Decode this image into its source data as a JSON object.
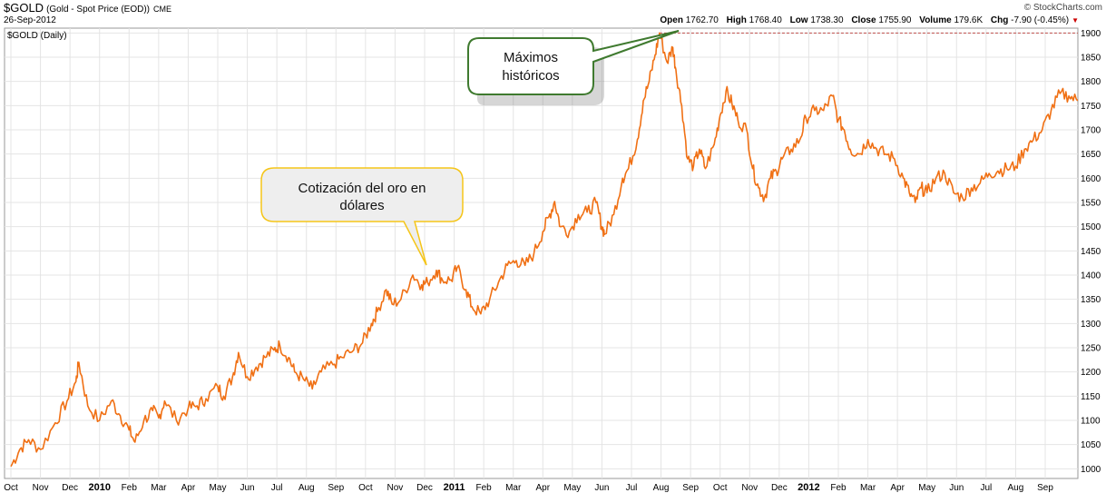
{
  "header": {
    "symbol": "$GOLD",
    "description": "(Gold - Spot Price (EOD))",
    "exchange": "CME",
    "date": "26-Sep-2012",
    "brand": "© StockCharts.com",
    "panel_label": "$GOLD (Daily)",
    "ohlc": {
      "open_label": "Open",
      "open": "1762.70",
      "high_label": "High",
      "high": "1768.40",
      "low_label": "Low",
      "low": "1738.30",
      "close_label": "Close",
      "close": "1755.90",
      "volume_label": "Volume",
      "volume": "179.6K",
      "chg_label": "Chg",
      "chg": "-7.90 (-0.45%)"
    }
  },
  "annotations": {
    "gold_price": [
      "Cotización del oro en",
      "dólares"
    ],
    "highs": [
      "Máximos",
      "históricos"
    ]
  },
  "colors": {
    "line": "#f07014",
    "grid": "#e4e4e4",
    "high_line": "#c0504d",
    "callout_gold_border": "#f5c518",
    "callout_green_border": "#3f7a2f"
  },
  "chart_data": {
    "type": "line",
    "title": "$GOLD (Daily)",
    "ylim": [
      980,
      1910
    ],
    "y_ticks": [
      1000,
      1050,
      1100,
      1150,
      1200,
      1250,
      1300,
      1350,
      1400,
      1450,
      1500,
      1550,
      1600,
      1650,
      1700,
      1750,
      1800,
      1850,
      1900
    ],
    "x_tick_labels": [
      "Oct",
      "Nov",
      "Dec",
      "2010",
      "Feb",
      "Mar",
      "Apr",
      "May",
      "Jun",
      "Jul",
      "Aug",
      "Sep",
      "Oct",
      "Nov",
      "Dec",
      "2011",
      "Feb",
      "Mar",
      "Apr",
      "May",
      "Jun",
      "Jul",
      "Aug",
      "Sep",
      "Oct",
      "Nov",
      "Dec",
      "2012",
      "Feb",
      "Mar",
      "Apr",
      "May",
      "Jun",
      "Jul",
      "Aug",
      "Sep"
    ],
    "x_tick_bold": [
      "2010",
      "2011",
      "2012"
    ],
    "all_time_high_ref": 1900,
    "series": [
      {
        "values": [
          [
            0,
            1005
          ],
          [
            0.3,
            1040
          ],
          [
            0.6,
            1060
          ],
          [
            1.0,
            1040
          ],
          [
            1.5,
            1095
          ],
          [
            1.9,
            1140
          ],
          [
            2.2,
            1180
          ],
          [
            2.3,
            1220
          ],
          [
            2.6,
            1130
          ],
          [
            3.0,
            1100
          ],
          [
            3.4,
            1140
          ],
          [
            3.7,
            1110
          ],
          [
            4.0,
            1080
          ],
          [
            4.2,
            1055
          ],
          [
            4.5,
            1100
          ],
          [
            4.8,
            1120
          ],
          [
            5.0,
            1105
          ],
          [
            5.2,
            1140
          ],
          [
            5.6,
            1100
          ],
          [
            6.0,
            1125
          ],
          [
            6.3,
            1130
          ],
          [
            6.6,
            1145
          ],
          [
            7.0,
            1170
          ],
          [
            7.2,
            1150
          ],
          [
            7.5,
            1190
          ],
          [
            7.7,
            1240
          ],
          [
            8.0,
            1190
          ],
          [
            8.3,
            1210
          ],
          [
            8.6,
            1230
          ],
          [
            8.9,
            1245
          ],
          [
            9.1,
            1255
          ],
          [
            9.4,
            1230
          ],
          [
            9.6,
            1200
          ],
          [
            9.9,
            1185
          ],
          [
            10.2,
            1165
          ],
          [
            10.5,
            1200
          ],
          [
            10.9,
            1215
          ],
          [
            11.2,
            1230
          ],
          [
            11.6,
            1245
          ],
          [
            11.9,
            1260
          ],
          [
            12.2,
            1300
          ],
          [
            12.4,
            1325
          ],
          [
            12.7,
            1370
          ],
          [
            12.9,
            1340
          ],
          [
            13.2,
            1350
          ],
          [
            13.6,
            1400
          ],
          [
            13.9,
            1380
          ],
          [
            14.1,
            1385
          ],
          [
            14.4,
            1410
          ],
          [
            14.6,
            1390
          ],
          [
            14.9,
            1390
          ],
          [
            15.1,
            1415
          ],
          [
            15.4,
            1370
          ],
          [
            15.6,
            1335
          ],
          [
            15.9,
            1320
          ],
          [
            16.2,
            1350
          ],
          [
            16.5,
            1385
          ],
          [
            16.8,
            1420
          ],
          [
            17.1,
            1430
          ],
          [
            17.4,
            1420
          ],
          [
            17.7,
            1445
          ],
          [
            18.0,
            1490
          ],
          [
            18.2,
            1520
          ],
          [
            18.4,
            1552
          ],
          [
            18.6,
            1500
          ],
          [
            18.9,
            1490
          ],
          [
            19.2,
            1525
          ],
          [
            19.5,
            1530
          ],
          [
            19.8,
            1550
          ],
          [
            20.0,
            1500
          ],
          [
            20.1,
            1485
          ],
          [
            20.4,
            1525
          ],
          [
            20.7,
            1600
          ],
          [
            20.9,
            1620
          ],
          [
            21.2,
            1680
          ],
          [
            21.4,
            1760
          ],
          [
            21.6,
            1800
          ],
          [
            21.8,
            1855
          ],
          [
            21.95,
            1900
          ],
          [
            22.2,
            1840
          ],
          [
            22.4,
            1870
          ],
          [
            22.5,
            1825
          ],
          [
            22.7,
            1750
          ],
          [
            22.9,
            1640
          ],
          [
            23.1,
            1625
          ],
          [
            23.3,
            1660
          ],
          [
            23.5,
            1620
          ],
          [
            23.8,
            1670
          ],
          [
            24.0,
            1730
          ],
          [
            24.2,
            1780
          ],
          [
            24.4,
            1755
          ],
          [
            24.6,
            1720
          ],
          [
            24.9,
            1700
          ],
          [
            25.1,
            1620
          ],
          [
            25.3,
            1580
          ],
          [
            25.5,
            1560
          ],
          [
            25.7,
            1600
          ],
          [
            25.9,
            1615
          ],
          [
            26.1,
            1640
          ],
          [
            26.4,
            1660
          ],
          [
            26.7,
            1680
          ],
          [
            26.9,
            1725
          ],
          [
            27.2,
            1740
          ],
          [
            27.5,
            1740
          ],
          [
            27.8,
            1770
          ],
          [
            28.0,
            1720
          ],
          [
            28.2,
            1700
          ],
          [
            28.4,
            1660
          ],
          [
            28.7,
            1650
          ],
          [
            29.0,
            1680
          ],
          [
            29.3,
            1660
          ],
          [
            29.6,
            1650
          ],
          [
            29.9,
            1640
          ],
          [
            30.2,
            1600
          ],
          [
            30.4,
            1570
          ],
          [
            30.6,
            1550
          ],
          [
            30.8,
            1580
          ],
          [
            31.0,
            1570
          ],
          [
            31.3,
            1600
          ],
          [
            31.6,
            1610
          ],
          [
            31.9,
            1570
          ],
          [
            32.2,
            1560
          ],
          [
            32.5,
            1580
          ],
          [
            32.8,
            1590
          ],
          [
            33.1,
            1610
          ],
          [
            33.4,
            1615
          ],
          [
            33.7,
            1620
          ],
          [
            34.0,
            1625
          ],
          [
            34.3,
            1660
          ],
          [
            34.6,
            1680
          ],
          [
            34.9,
            1700
          ],
          [
            35.2,
            1740
          ],
          [
            35.5,
            1775
          ],
          [
            35.8,
            1770
          ],
          [
            36.1,
            1760
          ]
        ]
      }
    ]
  }
}
